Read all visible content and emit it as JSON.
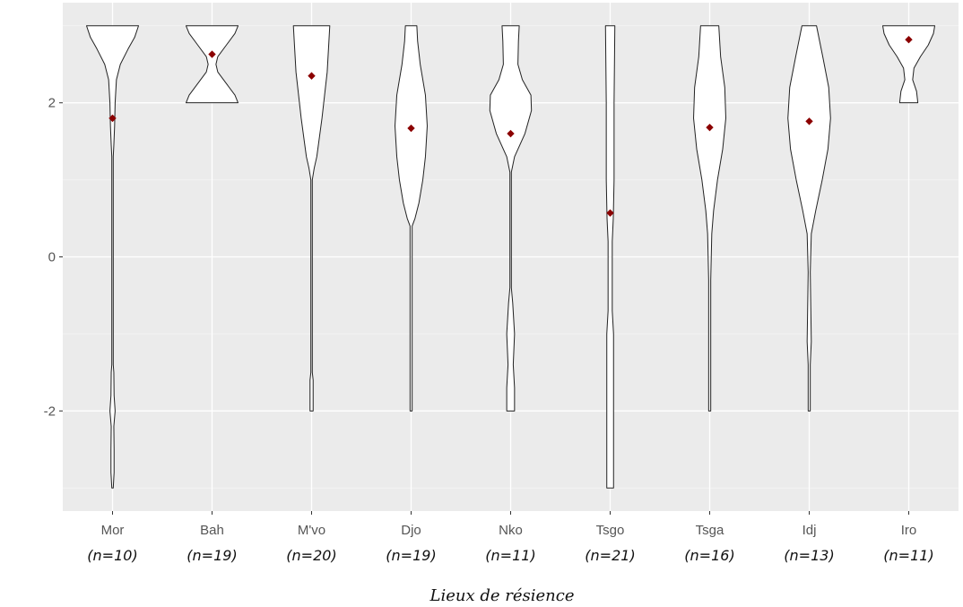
{
  "chart_data": {
    "type": "violin",
    "title": "",
    "xlabel": "Lieux de résience",
    "ylabel": "",
    "ylim": [
      -3.3,
      3.3
    ],
    "yticks": [
      -2,
      0,
      2
    ],
    "grid": true,
    "legend": "none",
    "colors": {
      "panel": "#ebebeb",
      "grid_major": "#ffffff",
      "violin_fill": "#ffffff",
      "violin_stroke": "#222222",
      "mean_point": "#8b0000"
    },
    "categories": [
      {
        "label": "Mor",
        "n_label": "(n=10)",
        "mean": 1.8,
        "ymin": -3,
        "ymax": 3,
        "profile": [
          [
            -3,
            0.02
          ],
          [
            -2.8,
            0.06
          ],
          [
            -2.5,
            0.06
          ],
          [
            -2.2,
            0.05
          ],
          [
            -2.0,
            0.1
          ],
          [
            -1.8,
            0.06
          ],
          [
            -1.5,
            0.05
          ],
          [
            -1.4,
            0.02
          ],
          [
            -1.0,
            0.01
          ],
          [
            1.3,
            0.01
          ],
          [
            1.45,
            0.05
          ],
          [
            1.7,
            0.08
          ],
          [
            2.0,
            0.1
          ],
          [
            2.3,
            0.15
          ],
          [
            2.5,
            0.3
          ],
          [
            2.7,
            0.6
          ],
          [
            2.85,
            0.85
          ],
          [
            3,
            1.0
          ]
        ]
      },
      {
        "label": "Bah",
        "n_label": "(n=19)",
        "mean": 2.63,
        "ymin": 2,
        "ymax": 3,
        "profile": [
          [
            2,
            1.0
          ],
          [
            2.1,
            0.88
          ],
          [
            2.25,
            0.55
          ],
          [
            2.4,
            0.22
          ],
          [
            2.5,
            0.15
          ],
          [
            2.6,
            0.22
          ],
          [
            2.75,
            0.55
          ],
          [
            2.9,
            0.88
          ],
          [
            3,
            1.0
          ]
        ]
      },
      {
        "label": "M'vo",
        "n_label": "(n=20)",
        "mean": 2.35,
        "ymin": -2,
        "ymax": 3,
        "profile": [
          [
            -2,
            0.06
          ],
          [
            -1.6,
            0.06
          ],
          [
            -1.5,
            0.02
          ],
          [
            1.0,
            0.02
          ],
          [
            1.15,
            0.1
          ],
          [
            1.3,
            0.2
          ],
          [
            1.5,
            0.28
          ],
          [
            1.8,
            0.4
          ],
          [
            2.1,
            0.5
          ],
          [
            2.4,
            0.6
          ],
          [
            2.7,
            0.65
          ],
          [
            3,
            0.7
          ]
        ]
      },
      {
        "label": "Djo",
        "n_label": "(n=19)",
        "mean": 1.67,
        "ymin": -2,
        "ymax": 3,
        "profile": [
          [
            -2,
            0.04
          ],
          [
            0.4,
            0.04
          ],
          [
            0.5,
            0.15
          ],
          [
            0.7,
            0.3
          ],
          [
            1.0,
            0.45
          ],
          [
            1.3,
            0.55
          ],
          [
            1.7,
            0.62
          ],
          [
            2.1,
            0.55
          ],
          [
            2.5,
            0.35
          ],
          [
            2.8,
            0.25
          ],
          [
            3,
            0.22
          ]
        ]
      },
      {
        "label": "Nko",
        "n_label": "(n=11)",
        "mean": 1.6,
        "ymin": -2,
        "ymax": 3,
        "profile": [
          [
            -2,
            0.15
          ],
          [
            -1.7,
            0.15
          ],
          [
            -1.4,
            0.1
          ],
          [
            -1.0,
            0.15
          ],
          [
            -0.6,
            0.08
          ],
          [
            -0.4,
            0.02
          ],
          [
            1.1,
            0.02
          ],
          [
            1.3,
            0.15
          ],
          [
            1.6,
            0.55
          ],
          [
            1.9,
            0.8
          ],
          [
            2.1,
            0.78
          ],
          [
            2.3,
            0.45
          ],
          [
            2.5,
            0.28
          ],
          [
            2.8,
            0.3
          ],
          [
            3,
            0.33
          ]
        ]
      },
      {
        "label": "Tsgo",
        "n_label": "(n=21)",
        "mean": 0.57,
        "ymin": -3,
        "ymax": 3,
        "profile": [
          [
            -3,
            0.13
          ],
          [
            -1.0,
            0.13
          ],
          [
            -0.7,
            0.08
          ],
          [
            0.2,
            0.08
          ],
          [
            0.5,
            0.12
          ],
          [
            1.0,
            0.15
          ],
          [
            2.0,
            0.15
          ],
          [
            3,
            0.18
          ]
        ]
      },
      {
        "label": "Tsga",
        "n_label": "(n=16)",
        "mean": 1.68,
        "ymin": -2,
        "ymax": 3,
        "profile": [
          [
            -2,
            0.04
          ],
          [
            -0.3,
            0.04
          ],
          [
            0.3,
            0.08
          ],
          [
            0.6,
            0.15
          ],
          [
            1.0,
            0.3
          ],
          [
            1.4,
            0.5
          ],
          [
            1.8,
            0.62
          ],
          [
            2.2,
            0.58
          ],
          [
            2.6,
            0.42
          ],
          [
            3,
            0.35
          ]
        ]
      },
      {
        "label": "Idj",
        "n_label": "(n=13)",
        "mean": 1.76,
        "ymin": -2,
        "ymax": 3,
        "profile": [
          [
            -2,
            0.04
          ],
          [
            -1.4,
            0.04
          ],
          [
            -1.1,
            0.08
          ],
          [
            -0.2,
            0.04
          ],
          [
            0.3,
            0.08
          ],
          [
            0.6,
            0.25
          ],
          [
            1.0,
            0.5
          ],
          [
            1.4,
            0.72
          ],
          [
            1.8,
            0.82
          ],
          [
            2.2,
            0.75
          ],
          [
            2.6,
            0.52
          ],
          [
            3,
            0.28
          ]
        ]
      },
      {
        "label": "Iro",
        "n_label": "(n=11)",
        "mean": 2.82,
        "ymin": 2,
        "ymax": 3,
        "profile": [
          [
            2,
            0.35
          ],
          [
            2.15,
            0.3
          ],
          [
            2.3,
            0.15
          ],
          [
            2.45,
            0.2
          ],
          [
            2.6,
            0.45
          ],
          [
            2.75,
            0.75
          ],
          [
            2.9,
            0.95
          ],
          [
            3,
            1.0
          ]
        ]
      }
    ]
  }
}
